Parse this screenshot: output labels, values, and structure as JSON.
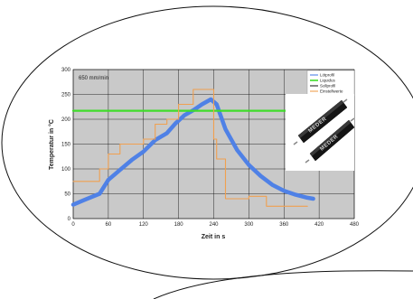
{
  "chart_data": {
    "type": "line",
    "annotation": "650 mm/min",
    "xlabel": "Zeit in s",
    "ylabel": "Temperatur in °C",
    "xlim": [
      0,
      480
    ],
    "ylim": [
      0,
      300
    ],
    "xticks": [
      0,
      60,
      120,
      180,
      240,
      300,
      360,
      420,
      480
    ],
    "yticks": [
      0,
      50,
      100,
      150,
      200,
      250,
      300
    ],
    "grid": true,
    "legend_position": "top-right",
    "series": [
      {
        "name": "Lötprofil",
        "color": "#4f81e6",
        "x": [
          0,
          20,
          45,
          60,
          80,
          100,
          120,
          140,
          160,
          175,
          190,
          205,
          220,
          235,
          245,
          260,
          280,
          300,
          320,
          340,
          360,
          380,
          400,
          410
        ],
        "y": [
          28,
          38,
          50,
          78,
          98,
          118,
          135,
          158,
          172,
          192,
          208,
          218,
          230,
          240,
          230,
          180,
          138,
          108,
          86,
          68,
          56,
          48,
          42,
          40
        ]
      },
      {
        "name": "Liquidus",
        "color": "#3fdc2a",
        "x": [
          0,
          408
        ],
        "y": [
          217,
          217
        ]
      },
      {
        "name": "Sollprofil",
        "color": "#222222",
        "x": [],
        "y": []
      },
      {
        "name": "Einstellwerte",
        "color": "#f0a050",
        "x": [
          0,
          45,
          45,
          60,
          60,
          80,
          80,
          120,
          120,
          140,
          140,
          160,
          160,
          180,
          180,
          205,
          205,
          240,
          240,
          245,
          245,
          260,
          260,
          300,
          300,
          330,
          330,
          400
        ],
        "y": [
          75,
          75,
          100,
          100,
          130,
          130,
          150,
          150,
          160,
          160,
          190,
          190,
          200,
          200,
          230,
          230,
          260,
          260,
          160,
          160,
          120,
          120,
          40,
          40,
          45,
          45,
          25,
          25
        ]
      }
    ]
  },
  "photo": {
    "part_label": "MEDER"
  }
}
